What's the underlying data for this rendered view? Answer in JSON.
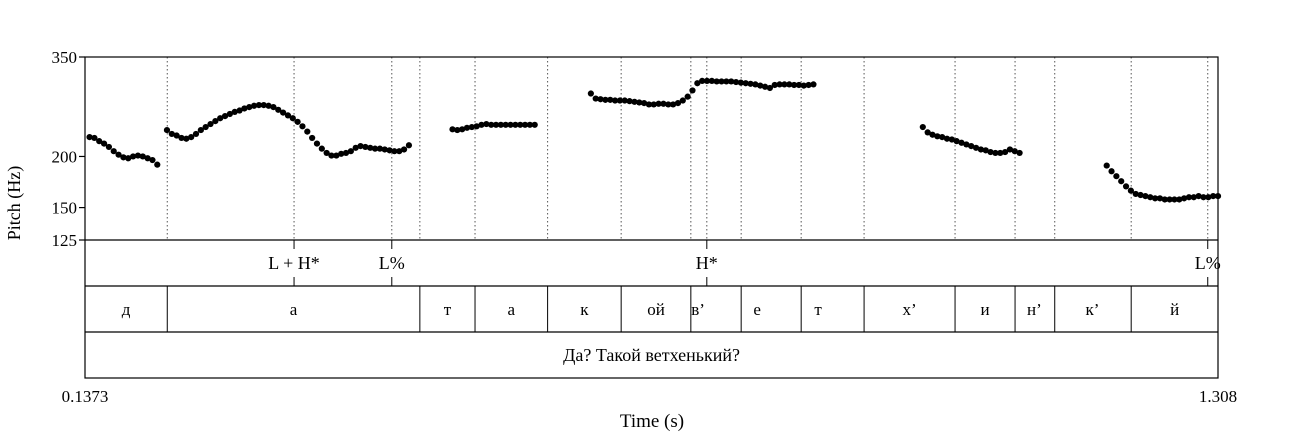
{
  "chart_data": {
    "type": "scatter",
    "title": "",
    "xlabel": "Time (s)",
    "ylabel": "Pitch (Hz)",
    "log_scale_y": true,
    "xlim": [
      0.1373,
      1.308
    ],
    "ylim": [
      125,
      350
    ],
    "x_tick_labels": [
      "0.1373",
      "1.308"
    ],
    "y_ticks": [
      125,
      150,
      200,
      350
    ],
    "y_tick_labels": [
      "125",
      "150",
      "200",
      "350"
    ],
    "grid": false,
    "point_color": "#000000",
    "series": [
      {
        "x": [
          0.142,
          0.147,
          0.152,
          0.157,
          0.162,
          0.167,
          0.172,
          0.177,
          0.182,
          0.187,
          0.192,
          0.197,
          0.202,
          0.207,
          0.212,
          0.222,
          0.227,
          0.232,
          0.237,
          0.242,
          0.247,
          0.252,
          0.257,
          0.262,
          0.267,
          0.272,
          0.277,
          0.282,
          0.287,
          0.292,
          0.297,
          0.302,
          0.307,
          0.312,
          0.317,
          0.322,
          0.327,
          0.332,
          0.337,
          0.342,
          0.347,
          0.352,
          0.357,
          0.362,
          0.367,
          0.372,
          0.377,
          0.382,
          0.387,
          0.392,
          0.397,
          0.402,
          0.407,
          0.412,
          0.417,
          0.422,
          0.427,
          0.432,
          0.437,
          0.442,
          0.447,
          0.452,
          0.457,
          0.462,
          0.467,
          0.472,
          0.517,
          0.522,
          0.527,
          0.532,
          0.537,
          0.542,
          0.547,
          0.552,
          0.557,
          0.562,
          0.567,
          0.572,
          0.577,
          0.582,
          0.587,
          0.592,
          0.597,
          0.602,
          0.66,
          0.665,
          0.67,
          0.675,
          0.68,
          0.685,
          0.69,
          0.695,
          0.7,
          0.705,
          0.71,
          0.715,
          0.72,
          0.725,
          0.73,
          0.735,
          0.74,
          0.745,
          0.75,
          0.755,
          0.76,
          0.765,
          0.77,
          0.775,
          0.78,
          0.785,
          0.79,
          0.795,
          0.8,
          0.805,
          0.81,
          0.815,
          0.82,
          0.825,
          0.83,
          0.835,
          0.84,
          0.845,
          0.85,
          0.855,
          0.86,
          0.865,
          0.87,
          0.875,
          0.88,
          0.885,
          0.89,
          1.003,
          1.008,
          1.013,
          1.018,
          1.023,
          1.028,
          1.033,
          1.038,
          1.043,
          1.048,
          1.053,
          1.058,
          1.063,
          1.068,
          1.073,
          1.078,
          1.083,
          1.088,
          1.093,
          1.098,
          1.103,
          1.193,
          1.198,
          1.203,
          1.208,
          1.213,
          1.218,
          1.223,
          1.228,
          1.233,
          1.238,
          1.243,
          1.248,
          1.253,
          1.258,
          1.263,
          1.268,
          1.273,
          1.278,
          1.283,
          1.288,
          1.293,
          1.298,
          1.303,
          1.308
        ],
        "y": [
          223,
          222,
          218,
          215,
          211,
          206,
          202,
          199,
          198,
          200,
          201,
          200,
          198,
          196,
          191,
          232,
          227,
          225,
          222,
          221,
          223,
          227,
          232,
          236,
          240,
          244,
          248,
          251,
          254,
          257,
          259,
          262,
          264,
          266,
          267,
          267,
          266,
          264,
          260,
          256,
          252,
          248,
          243,
          237,
          230,
          222,
          215,
          209,
          204,
          201,
          201,
          203,
          204,
          206,
          210,
          212,
          211,
          210,
          209,
          209,
          208,
          207,
          206,
          206,
          208,
          213,
          233,
          232,
          233,
          235,
          236,
          237,
          239,
          240,
          239,
          239,
          239,
          239,
          239,
          239,
          239,
          239,
          239,
          239,
          285,
          277,
          276,
          275,
          275,
          274,
          274,
          274,
          273,
          272,
          271,
          270,
          268,
          268,
          269,
          269,
          268,
          268,
          270,
          274,
          280,
          290,
          302,
          306,
          306,
          306,
          305,
          305,
          305,
          305,
          304,
          303,
          302,
          301,
          300,
          298,
          296,
          294,
          299,
          300,
          300,
          300,
          299,
          299,
          298,
          299,
          300,
          236,
          229,
          226,
          224,
          223,
          221,
          220,
          218,
          216,
          214,
          212,
          210,
          208,
          207,
          205,
          204,
          204,
          205,
          208,
          206,
          204,
          190,
          184,
          179,
          174,
          169,
          165,
          162,
          161,
          160,
          159,
          158,
          158,
          157,
          157,
          157,
          157,
          158,
          159,
          159,
          160,
          159,
          159,
          160,
          160
        ]
      }
    ],
    "tiers": [
      {
        "name": "tones",
        "boundaries": [
          0.3533,
          0.4543,
          0.7798,
          1.2974
        ],
        "labels": [
          {
            "x": 0.3533,
            "text": "L + H*"
          },
          {
            "x": 0.4543,
            "text": "L%"
          },
          {
            "x": 0.7798,
            "text": "H*"
          },
          {
            "x": 1.2974,
            "text": "L%"
          }
        ]
      },
      {
        "name": "segments",
        "boundaries": [
          0.2223,
          0.4833,
          0.5403,
          0.6153,
          0.6913,
          0.7633,
          0.8153,
          0.8773,
          0.9423,
          1.0363,
          1.0983,
          1.1393,
          1.2183
        ],
        "labels": [
          {
            "x": 0.1798,
            "text": "д"
          },
          {
            "x": 0.3528,
            "text": "а"
          },
          {
            "x": 0.5118,
            "text": "т"
          },
          {
            "x": 0.5778,
            "text": "а"
          },
          {
            "x": 0.6533,
            "text": "к"
          },
          {
            "x": 0.7273,
            "text": "ой"
          },
          {
            "x": 0.7708,
            "text": "в’"
          },
          {
            "x": 0.8318,
            "text": "е"
          },
          {
            "x": 0.8948,
            "text": "т"
          },
          {
            "x": 0.9893,
            "text": "х’"
          },
          {
            "x": 1.0673,
            "text": "и"
          },
          {
            "x": 1.1183,
            "text": "н’"
          },
          {
            "x": 1.1783,
            "text": "к’"
          },
          {
            "x": 1.2633,
            "text": "й"
          }
        ]
      },
      {
        "name": "sentence",
        "boundaries": [],
        "labels": [
          {
            "x": 0.7227,
            "text": "Да? Такой ветхенький?"
          }
        ]
      }
    ],
    "guide_lines_x": [
      0.2223,
      0.3533,
      0.4543,
      0.4833,
      0.5403,
      0.6153,
      0.6913,
      0.7633,
      0.7798,
      0.8153,
      0.8773,
      0.9423,
      1.0363,
      1.0983,
      1.1393,
      1.2183,
      1.2974
    ]
  }
}
